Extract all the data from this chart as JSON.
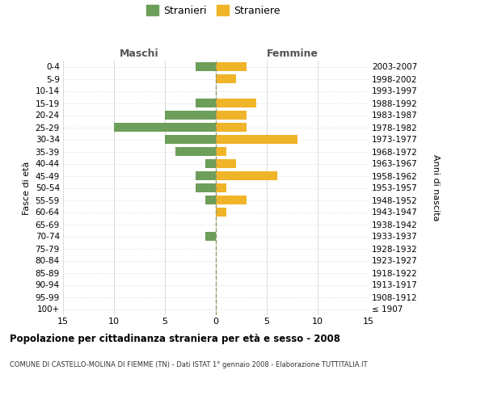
{
  "age_groups": [
    "100+",
    "95-99",
    "90-94",
    "85-89",
    "80-84",
    "75-79",
    "70-74",
    "65-69",
    "60-64",
    "55-59",
    "50-54",
    "45-49",
    "40-44",
    "35-39",
    "30-34",
    "25-29",
    "20-24",
    "15-19",
    "10-14",
    "5-9",
    "0-4"
  ],
  "birth_years": [
    "≤ 1907",
    "1908-1912",
    "1913-1917",
    "1918-1922",
    "1923-1927",
    "1928-1932",
    "1933-1937",
    "1938-1942",
    "1943-1947",
    "1948-1952",
    "1953-1957",
    "1958-1962",
    "1963-1967",
    "1968-1972",
    "1973-1977",
    "1978-1982",
    "1983-1987",
    "1988-1992",
    "1993-1997",
    "1998-2002",
    "2003-2007"
  ],
  "males": [
    0,
    0,
    0,
    0,
    0,
    0,
    1,
    0,
    0,
    1,
    2,
    2,
    1,
    4,
    5,
    10,
    5,
    2,
    0,
    0,
    2
  ],
  "females": [
    0,
    0,
    0,
    0,
    0,
    0,
    0,
    0,
    1,
    3,
    1,
    6,
    2,
    1,
    8,
    3,
    3,
    4,
    0,
    2,
    3
  ],
  "male_color": "#6d9e5a",
  "female_color": "#f0b429",
  "xlim": 15,
  "title": "Popolazione per cittadinanza straniera per età e sesso - 2008",
  "subtitle": "COMUNE DI CASTELLO-MOLINA DI FIEMME (TN) - Dati ISTAT 1° gennaio 2008 - Elaborazione TUTTITALIA.IT",
  "ylabel_left": "Fasce di età",
  "ylabel_right": "Anni di nascita",
  "xlabel_left": "Maschi",
  "xlabel_right": "Femmine",
  "legend_male": "Stranieri",
  "legend_female": "Straniere",
  "background_color": "#ffffff",
  "grid_color": "#cccccc",
  "center_line_color": "#999966"
}
